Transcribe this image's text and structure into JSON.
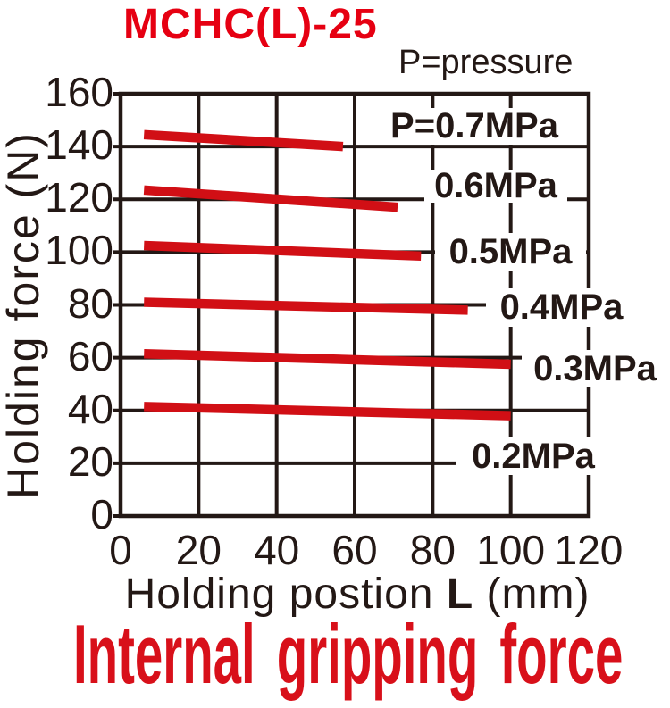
{
  "header": {
    "model": "MCHC(L)-25",
    "pressure_note": "P=pressure"
  },
  "footer": {
    "caption": "Internal gripping force"
  },
  "colors": {
    "background": "#ffffff",
    "ink": "#231815",
    "title_red": "#e60012",
    "caption_red": "#d8101a",
    "line_red": "#d10f15",
    "label_bg": "#ffffff"
  },
  "chart_data": {
    "type": "line",
    "title": "MCHC(L)-25",
    "subtitle": "Internal gripping force",
    "annotation": "P=pressure",
    "xlabel": "Holding postion L (mm)",
    "xlabel_parts": {
      "prefix": "Holding postion",
      "bold": "L",
      "suffix": "(mm)"
    },
    "ylabel": "Holding force (N)",
    "xlim": [
      0,
      120
    ],
    "ylim": [
      0,
      160
    ],
    "x_ticks": [
      0,
      20,
      40,
      60,
      80,
      100,
      120
    ],
    "y_ticks": [
      0,
      20,
      40,
      60,
      80,
      100,
      120,
      140,
      160
    ],
    "grid": true,
    "legend_position": "labels-right-of-line-ends",
    "series": [
      {
        "name": "P=0.7MPa",
        "pressure_mpa": 0.7,
        "points": [
          [
            6,
            144.5
          ],
          [
            57,
            140
          ]
        ]
      },
      {
        "name": "0.6MPa",
        "pressure_mpa": 0.6,
        "points": [
          [
            6,
            123.5
          ],
          [
            71,
            117
          ]
        ]
      },
      {
        "name": "0.5MPa",
        "pressure_mpa": 0.5,
        "points": [
          [
            6,
            102.5
          ],
          [
            77,
            98.5
          ]
        ]
      },
      {
        "name": "0.4MPa",
        "pressure_mpa": 0.4,
        "points": [
          [
            6,
            81
          ],
          [
            89,
            78
          ]
        ]
      },
      {
        "name": "0.3MPa",
        "pressure_mpa": 0.3,
        "points": [
          [
            6,
            61.5
          ],
          [
            100,
            57.5
          ]
        ]
      },
      {
        "name": "0.2MPa",
        "pressure_mpa": 0.2,
        "points": [
          [
            6,
            41.5
          ],
          [
            100,
            38
          ]
        ]
      }
    ]
  }
}
